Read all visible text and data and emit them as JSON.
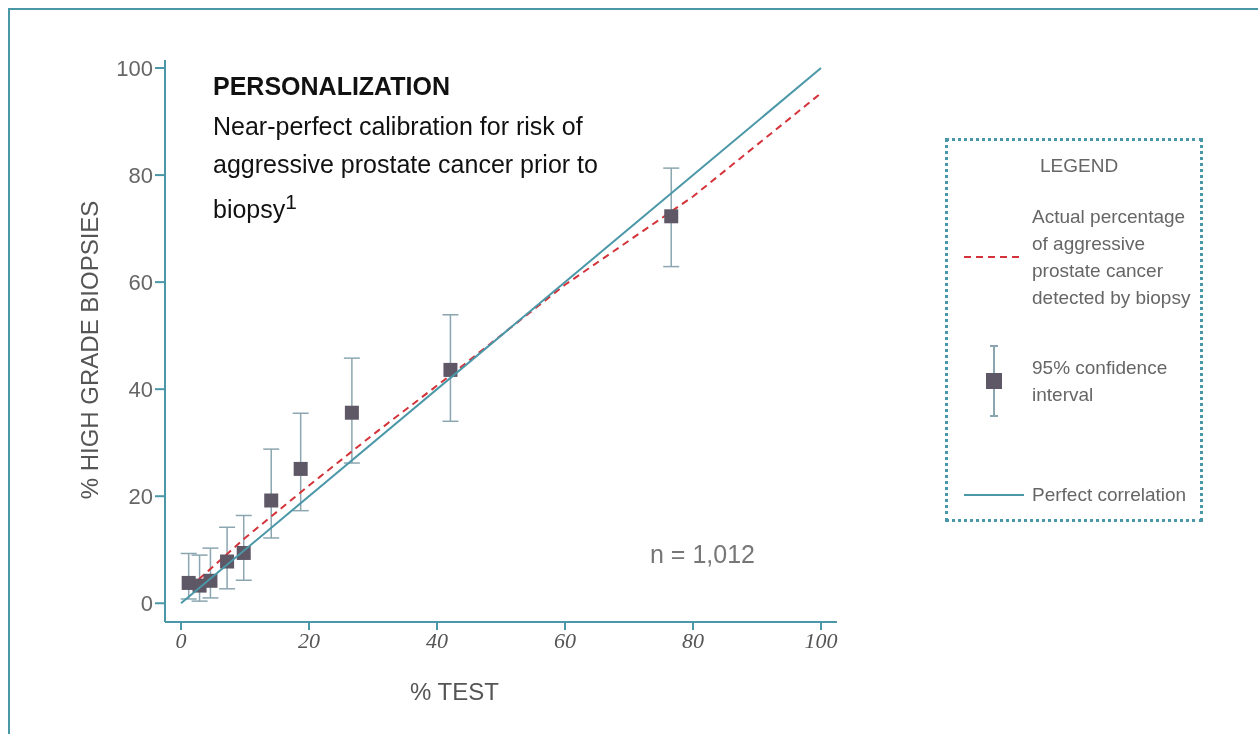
{
  "chart_data": {
    "type": "scatter",
    "title": "PERSONALIZATION",
    "subtitle": "Near-perfect calibration for risk of aggressive prostate cancer prior to biopsy$^{1}$",
    "xlabel": "% TEST",
    "ylabel": "% HIGH GRADE BIOPSIES",
    "legend_title": "LEGEND",
    "annotations": [
      "n = 1,012"
    ],
    "xlim": [
      -2.5,
      102.5
    ],
    "xticks": [
      0,
      20,
      40,
      60,
      80,
      100
    ],
    "ylim": [
      -3.5,
      101.5
    ],
    "yticks": [
      0,
      20,
      40,
      60,
      80,
      100
    ],
    "grid": false,
    "legend": "right",
    "series": [
      {
        "name": "Actual percentage of aggressive prostate cancer detected by biopsy",
        "type": "line",
        "color": "#d4333a",
        "line_style": "dashed",
        "marker": "none",
        "x": [
          2.8,
          10,
          20,
          30,
          42,
          60,
          80,
          100
        ],
        "values": [
          4.5,
          12.2,
          22,
          31.5,
          42.5,
          59.5,
          76,
          95.3
        ]
      },
      {
        "name": "95% confidence interval",
        "color": "#5e5766",
        "marker": "square",
        "x": [
          1.2,
          2.9,
          4.6,
          7.2,
          9.8,
          14.1,
          18.7,
          26.7,
          42.1,
          76.6
        ],
        "values": [
          3.8,
          3.3,
          4.2,
          7.8,
          9.4,
          19.2,
          25.1,
          35.6,
          43.6,
          72.3
        ],
        "errors": [
          [
            0.8,
            9.3
          ],
          [
            0.4,
            9
          ],
          [
            1,
            10.3
          ],
          [
            2.7,
            14.2
          ],
          [
            4.3,
            16.4
          ],
          [
            12.2,
            28.8
          ],
          [
            17.3,
            35.5
          ],
          [
            26.2,
            45.8
          ],
          [
            34,
            53.9
          ],
          [
            62.9,
            81.3
          ]
        ]
      },
      {
        "name": "Perfect correlation",
        "type": "line",
        "color": "#4a97a8",
        "line_style": "solid",
        "marker": "none",
        "x": [
          0,
          100
        ],
        "values": [
          0,
          100
        ]
      }
    ]
  }
}
